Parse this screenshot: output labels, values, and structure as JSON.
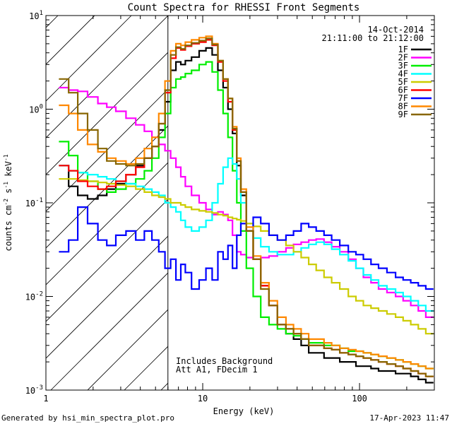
{
  "chart_data": {
    "type": "line",
    "title": "Count Spectra for RHESSI Front Segments",
    "xlabel": "Energy (keV)",
    "ylabel_main": "counts cm",
    "ylabel_sup1": "-2",
    "ylabel_s": " s",
    "ylabel_sup2": "-1",
    "ylabel_kev": " keV",
    "ylabel_sup3": "-1",
    "x_scale": "log",
    "y_scale": "log",
    "xlim": [
      1,
      300
    ],
    "ylim": [
      0.001,
      10
    ],
    "x_ticks": [
      {
        "value": 1,
        "label": "1"
      },
      {
        "value": 10,
        "label": "10"
      },
      {
        "value": 100,
        "label": "100"
      }
    ],
    "y_ticks": [
      {
        "value": 0.001,
        "base": "10",
        "exp": "-3"
      },
      {
        "value": 0.01,
        "base": "10",
        "exp": "-2"
      },
      {
        "value": 0.1,
        "base": "10",
        "exp": "-1"
      },
      {
        "value": 1,
        "base": "10",
        "exp": "0"
      },
      {
        "value": 10,
        "base": "10",
        "exp": "1"
      }
    ],
    "excluded_region_max_keV": 6,
    "date": "14-Oct-2014",
    "time_range": "21:11:00 to 21:12:00",
    "annotation_line1": "Includes Background",
    "annotation_line2": "Att A1, FDecim 1",
    "footer_left": "Generated by hsi_min_spectra_plot.pro",
    "footer_right": "17-Apr-2023 11:47",
    "x": [
      1.3,
      1.5,
      1.7,
      2.0,
      2.3,
      2.6,
      3.0,
      3.5,
      4.0,
      4.5,
      5.0,
      5.5,
      6.0,
      6.5,
      7.0,
      7.5,
      8.0,
      9.0,
      10.0,
      11.0,
      12.0,
      13.0,
      14.0,
      15.0,
      16.0,
      17.0,
      18.0,
      20.0,
      22.0,
      25.0,
      28.0,
      32.0,
      36.0,
      40.0,
      45.0,
      50.0,
      56.0,
      63.0,
      70.0,
      80.0,
      90.0,
      100.0,
      112.0,
      125.0,
      140.0,
      160.0,
      180.0,
      200.0,
      225.0,
      250.0,
      280.0
    ],
    "series": [
      {
        "name": "1F",
        "color": "#000000",
        "values": [
          0.25,
          0.15,
          0.12,
          0.11,
          0.12,
          0.14,
          0.16,
          0.2,
          0.25,
          0.3,
          0.4,
          0.6,
          1.2,
          2.6,
          3.2,
          3.0,
          3.3,
          3.6,
          4.2,
          4.5,
          3.8,
          2.6,
          1.7,
          1.0,
          0.55,
          0.25,
          0.12,
          0.05,
          0.025,
          0.013,
          0.008,
          0.005,
          0.004,
          0.0035,
          0.003,
          0.0025,
          0.0025,
          0.0022,
          0.0022,
          0.002,
          0.002,
          0.0018,
          0.0018,
          0.0017,
          0.0016,
          0.0016,
          0.0015,
          0.0015,
          0.0014,
          0.0013,
          0.0012
        ]
      },
      {
        "name": "2F",
        "color": "#ff00ff",
        "values": [
          1.7,
          1.6,
          1.55,
          1.35,
          1.15,
          1.05,
          0.95,
          0.8,
          0.68,
          0.58,
          0.5,
          0.42,
          0.36,
          0.3,
          0.24,
          0.19,
          0.15,
          0.12,
          0.1,
          0.085,
          0.075,
          0.08,
          0.075,
          0.065,
          0.045,
          0.03,
          0.028,
          0.026,
          0.025,
          0.026,
          0.027,
          0.03,
          0.033,
          0.036,
          0.038,
          0.04,
          0.041,
          0.038,
          0.034,
          0.03,
          0.025,
          0.02,
          0.016,
          0.014,
          0.012,
          0.011,
          0.01,
          0.009,
          0.008,
          0.007,
          0.006
        ]
      },
      {
        "name": "3F",
        "color": "#00ee00",
        "values": [
          0.45,
          0.32,
          0.21,
          0.17,
          0.14,
          0.13,
          0.14,
          0.16,
          0.18,
          0.22,
          0.3,
          0.5,
          0.9,
          1.7,
          2.1,
          2.2,
          2.4,
          2.6,
          3.0,
          3.2,
          2.5,
          1.6,
          0.9,
          0.5,
          0.22,
          0.1,
          0.05,
          0.02,
          0.01,
          0.006,
          0.005,
          0.0045,
          0.004,
          0.0038,
          0.0035,
          0.0032,
          0.0032,
          0.003,
          0.003,
          0.0028,
          0.0026,
          0.0026,
          0.0025,
          0.0024,
          0.0023,
          0.0022,
          0.0021,
          0.002,
          0.0019,
          0.0018,
          0.0017
        ]
      },
      {
        "name": "4F",
        "color": "#00ffff",
        "values": [
          0.25,
          0.22,
          0.21,
          0.2,
          0.19,
          0.18,
          0.17,
          0.16,
          0.15,
          0.14,
          0.13,
          0.12,
          0.1,
          0.09,
          0.08,
          0.065,
          0.055,
          0.05,
          0.055,
          0.065,
          0.1,
          0.16,
          0.24,
          0.3,
          0.26,
          0.18,
          0.1,
          0.06,
          0.042,
          0.034,
          0.03,
          0.028,
          0.028,
          0.03,
          0.033,
          0.036,
          0.038,
          0.036,
          0.032,
          0.028,
          0.024,
          0.02,
          0.017,
          0.015,
          0.013,
          0.012,
          0.011,
          0.01,
          0.009,
          0.008,
          0.007
        ]
      },
      {
        "name": "5F",
        "color": "#cccc00",
        "values": [
          0.18,
          0.18,
          0.175,
          0.17,
          0.165,
          0.16,
          0.155,
          0.15,
          0.14,
          0.13,
          0.12,
          0.115,
          0.11,
          0.1,
          0.1,
          0.095,
          0.09,
          0.085,
          0.082,
          0.08,
          0.078,
          0.075,
          0.073,
          0.07,
          0.068,
          0.066,
          0.064,
          0.06,
          0.056,
          0.05,
          0.045,
          0.04,
          0.035,
          0.03,
          0.026,
          0.022,
          0.019,
          0.016,
          0.014,
          0.012,
          0.01,
          0.009,
          0.008,
          0.0075,
          0.007,
          0.0065,
          0.006,
          0.0055,
          0.005,
          0.0045,
          0.004
        ]
      },
      {
        "name": "6F",
        "color": "#ff0000",
        "values": [
          0.25,
          0.22,
          0.17,
          0.15,
          0.14,
          0.15,
          0.17,
          0.2,
          0.24,
          0.3,
          0.4,
          0.7,
          1.5,
          3.5,
          4.5,
          4.3,
          4.7,
          5.0,
          5.2,
          5.5,
          4.8,
          3.2,
          2.0,
          1.2,
          0.6,
          0.28,
          0.13,
          0.05,
          0.025,
          0.013,
          0.008,
          0.005,
          0.0045,
          0.004,
          0.0035,
          0.003,
          0.003,
          0.0028,
          0.0027,
          0.0025,
          0.0024,
          0.0023,
          0.0022,
          0.0021,
          0.002,
          0.0019,
          0.0018,
          0.0017,
          0.0016,
          0.0015,
          0.0014
        ]
      },
      {
        "name": "7F",
        "color": "#0000ff",
        "values": [
          0.03,
          0.04,
          0.09,
          0.06,
          0.04,
          0.035,
          0.045,
          0.05,
          0.04,
          0.05,
          0.04,
          0.03,
          0.02,
          0.025,
          0.015,
          0.022,
          0.018,
          0.012,
          0.015,
          0.02,
          0.015,
          0.03,
          0.025,
          0.035,
          0.02,
          0.045,
          0.06,
          0.05,
          0.07,
          0.06,
          0.045,
          0.04,
          0.045,
          0.05,
          0.06,
          0.055,
          0.05,
          0.045,
          0.04,
          0.035,
          0.03,
          0.028,
          0.025,
          0.022,
          0.02,
          0.018,
          0.016,
          0.015,
          0.014,
          0.013,
          0.012
        ]
      },
      {
        "name": "8F",
        "color": "#ff8800",
        "values": [
          1.1,
          0.9,
          0.6,
          0.42,
          0.35,
          0.3,
          0.28,
          0.26,
          0.3,
          0.38,
          0.5,
          0.9,
          2.0,
          4.2,
          5.0,
          4.8,
          5.2,
          5.5,
          5.8,
          6.0,
          5.0,
          3.3,
          2.1,
          1.3,
          0.65,
          0.3,
          0.14,
          0.055,
          0.027,
          0.014,
          0.009,
          0.006,
          0.005,
          0.0045,
          0.004,
          0.0035,
          0.0035,
          0.0032,
          0.003,
          0.0028,
          0.0027,
          0.0026,
          0.0025,
          0.0024,
          0.0023,
          0.0022,
          0.0021,
          0.002,
          0.0019,
          0.0018,
          0.0017
        ]
      },
      {
        "name": "9F",
        "color": "#886600",
        "values": [
          2.1,
          1.5,
          0.9,
          0.6,
          0.38,
          0.28,
          0.26,
          0.25,
          0.26,
          0.3,
          0.4,
          0.7,
          1.6,
          3.8,
          4.6,
          4.4,
          4.8,
          5.1,
          5.4,
          5.7,
          4.9,
          3.3,
          2.1,
          1.3,
          0.62,
          0.28,
          0.13,
          0.05,
          0.025,
          0.012,
          0.008,
          0.005,
          0.0045,
          0.004,
          0.0035,
          0.003,
          0.003,
          0.0028,
          0.0027,
          0.0025,
          0.0024,
          0.0023,
          0.0022,
          0.0021,
          0.002,
          0.0019,
          0.0018,
          0.0017,
          0.0016,
          0.0015,
          0.0014
        ]
      }
    ]
  }
}
